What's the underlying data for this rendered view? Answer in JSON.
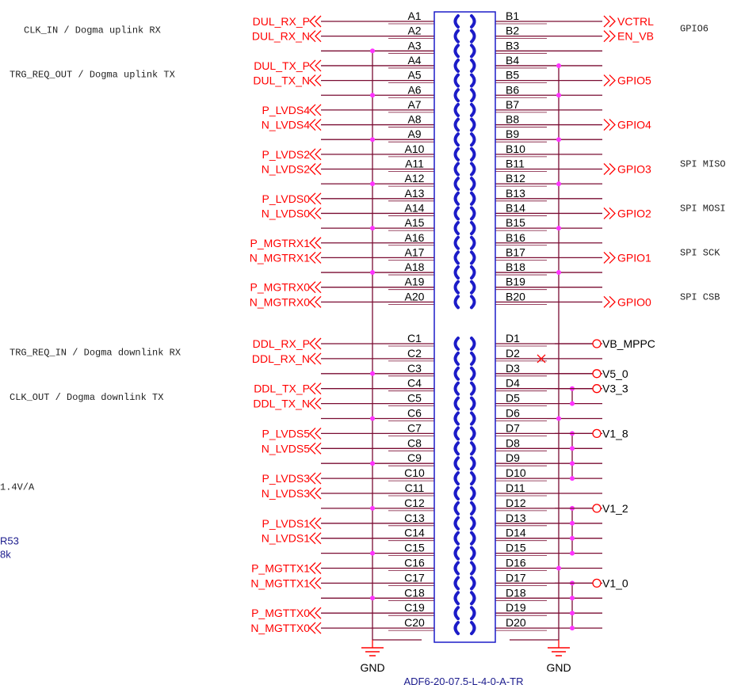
{
  "colors": {
    "wire": "#7a0c32",
    "net": "#ff0000",
    "connector": "#1c1cc8",
    "gnd": "#ff0000",
    "dot": "#ff33ff",
    "text": "#000000"
  },
  "icons": {
    "left_net": "double-chevron-left-icon",
    "right_net": "double-chevron-right-icon",
    "power": "power-circle-icon",
    "ground": "ground-icon",
    "noconnect": "no-connect-icon",
    "pin": "connector-pin-icon"
  },
  "connector": {
    "part_number": "ADF6-20-07.5-L-4-0-A-TR",
    "gnd_left": "GND",
    "gnd_right": "GND"
  },
  "rows_top": [
    {
      "a": "A1",
      "b": "B1"
    },
    {
      "a": "A2",
      "b": "B2"
    },
    {
      "a": "A3",
      "b": "B3"
    },
    {
      "a": "A4",
      "b": "B4"
    },
    {
      "a": "A5",
      "b": "B5"
    },
    {
      "a": "A6",
      "b": "B6"
    },
    {
      "a": "A7",
      "b": "B7"
    },
    {
      "a": "A8",
      "b": "B8"
    },
    {
      "a": "A9",
      "b": "B9"
    },
    {
      "a": "A10",
      "b": "B10"
    },
    {
      "a": "A11",
      "b": "B11"
    },
    {
      "a": "A12",
      "b": "B12"
    },
    {
      "a": "A13",
      "b": "B13"
    },
    {
      "a": "A14",
      "b": "B14"
    },
    {
      "a": "A15",
      "b": "B15"
    },
    {
      "a": "A16",
      "b": "B16"
    },
    {
      "a": "A17",
      "b": "B17"
    },
    {
      "a": "A18",
      "b": "B18"
    },
    {
      "a": "A19",
      "b": "B19"
    },
    {
      "a": "A20",
      "b": "B20"
    }
  ],
  "rows_bottom": [
    {
      "a": "C1",
      "b": "D1"
    },
    {
      "a": "C2",
      "b": "D2"
    },
    {
      "a": "C3",
      "b": "D3"
    },
    {
      "a": "C4",
      "b": "D4"
    },
    {
      "a": "C5",
      "b": "D5"
    },
    {
      "a": "C6",
      "b": "D6"
    },
    {
      "a": "C7",
      "b": "D7"
    },
    {
      "a": "C8",
      "b": "D8"
    },
    {
      "a": "C9",
      "b": "D9"
    },
    {
      "a": "C10",
      "b": "D10"
    },
    {
      "a": "C11",
      "b": "D11"
    },
    {
      "a": "C12",
      "b": "D12"
    },
    {
      "a": "C13",
      "b": "D13"
    },
    {
      "a": "C14",
      "b": "D14"
    },
    {
      "a": "C15",
      "b": "D15"
    },
    {
      "a": "C16",
      "b": "D16"
    },
    {
      "a": "C17",
      "b": "D17"
    },
    {
      "a": "C18",
      "b": "D18"
    },
    {
      "a": "C19",
      "b": "D19"
    },
    {
      "a": "C20",
      "b": "D20"
    }
  ],
  "left_nets": [
    {
      "label": "DUL_RX_P",
      "row": 0
    },
    {
      "label": "DUL_RX_N",
      "row": 1
    },
    {
      "label": "DUL_TX_P",
      "row": 3
    },
    {
      "label": "DUL_TX_N",
      "row": 4
    },
    {
      "label": "P_LVDS4",
      "row": 6
    },
    {
      "label": "N_LVDS4",
      "row": 7
    },
    {
      "label": "P_LVDS2",
      "row": 9
    },
    {
      "label": "N_LVDS2",
      "row": 10
    },
    {
      "label": "P_LVDS0",
      "row": 12
    },
    {
      "label": "N_LVDS0",
      "row": 13
    },
    {
      "label": "P_MGTRX1",
      "row": 15
    },
    {
      "label": "N_MGTRX1",
      "row": 16
    },
    {
      "label": "P_MGTRX0",
      "row": 18
    },
    {
      "label": "N_MGTRX0",
      "row": 19
    },
    {
      "label": "DDL_RX_P",
      "row": 20
    },
    {
      "label": "DDL_RX_N",
      "row": 21
    },
    {
      "label": "DDL_TX_P",
      "row": 23
    },
    {
      "label": "DDL_TX_N",
      "row": 24
    },
    {
      "label": "P_LVDS5",
      "row": 26
    },
    {
      "label": "N_LVDS5",
      "row": 27
    },
    {
      "label": "P_LVDS3",
      "row": 29
    },
    {
      "label": "N_LVDS3",
      "row": 30
    },
    {
      "label": "P_LVDS1",
      "row": 32
    },
    {
      "label": "N_LVDS1",
      "row": 33
    },
    {
      "label": "P_MGTTX1",
      "row": 35
    },
    {
      "label": "N_MGTTX1",
      "row": 36
    },
    {
      "label": "P_MGTTX0",
      "row": 38
    },
    {
      "label": "N_MGTTX0",
      "row": 39
    }
  ],
  "right_nets": [
    {
      "label": "VCTRL",
      "row": 0
    },
    {
      "label": "EN_VB",
      "row": 1
    },
    {
      "label": "GPIO5",
      "row": 4
    },
    {
      "label": "GPIO4",
      "row": 7
    },
    {
      "label": "GPIO3",
      "row": 10
    },
    {
      "label": "GPIO2",
      "row": 13
    },
    {
      "label": "GPIO1",
      "row": 16
    },
    {
      "label": "GPIO0",
      "row": 19
    }
  ],
  "power_nets": [
    {
      "label": "VB_MPPC",
      "row": 20,
      "taps": [
        20
      ]
    },
    {
      "label": "V5_0",
      "row": 22,
      "taps": [
        22
      ]
    },
    {
      "label": "V3_3",
      "row": 23,
      "taps": [
        23,
        24
      ]
    },
    {
      "label": "V1_8",
      "row": 26,
      "taps": [
        26,
        27,
        28,
        29
      ]
    },
    {
      "label": "V1_2",
      "row": 31,
      "taps": [
        31,
        32,
        33,
        34
      ]
    },
    {
      "label": "V1_0",
      "row": 36,
      "taps": [
        36,
        37,
        38,
        39
      ]
    }
  ],
  "no_connect_row": 21,
  "gnd_rows_left": [
    2,
    5,
    8,
    11,
    14,
    17,
    22,
    25,
    28,
    31,
    34,
    37
  ],
  "gnd_rows_right": [
    3,
    5,
    8,
    11,
    14,
    17,
    25,
    35
  ],
  "annotations_left": [
    {
      "text": "CLK_IN / Dogma uplink RX",
      "row": 0.5
    },
    {
      "text": "TRG_REQ_OUT / Dogma uplink TX",
      "row": 3.5
    },
    {
      "text": "TRG_REQ_IN / Dogma downlink RX",
      "row": 20.5
    },
    {
      "text": "CLK_OUT / Dogma downlink TX",
      "row": 23.5
    },
    {
      "text": "1.4V/A",
      "row": 29.5
    }
  ],
  "annotations_blue": [
    {
      "text": "R53",
      "row": 33.4
    },
    {
      "text": "8k",
      "row": 34.3
    }
  ],
  "annotations_right": [
    {
      "text": "GPIO6",
      "row": 1
    },
    {
      "text": "SPI MISO",
      "row": 10
    },
    {
      "text": "SPI MOSI",
      "row": 13
    },
    {
      "text": "SPI SCK",
      "row": 16
    },
    {
      "text": "SPI CSB",
      "row": 19
    }
  ]
}
